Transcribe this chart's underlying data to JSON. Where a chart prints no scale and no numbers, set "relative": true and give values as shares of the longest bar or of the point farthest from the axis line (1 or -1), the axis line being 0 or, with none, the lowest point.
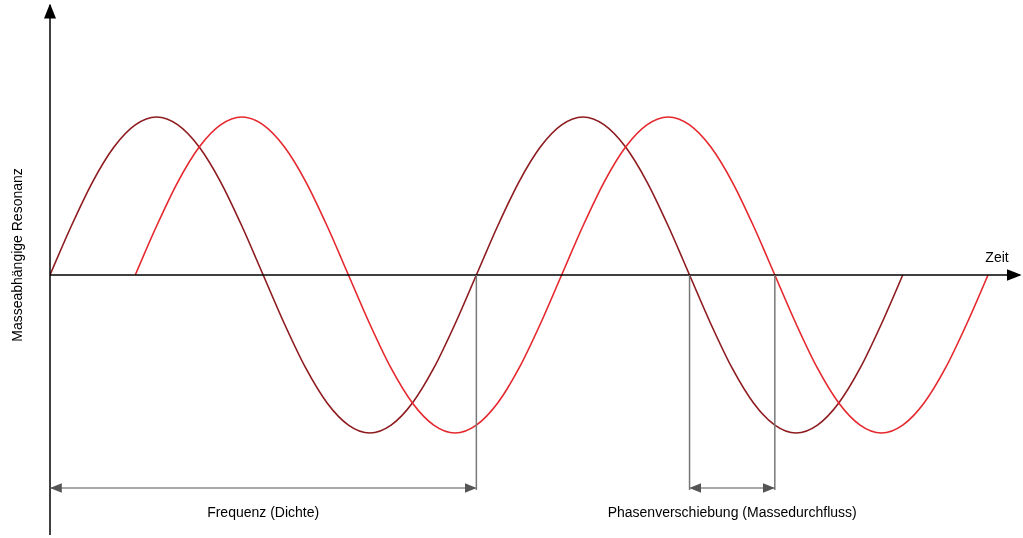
{
  "chart_data": {
    "type": "line",
    "relative": true,
    "xlabel": "Zeit",
    "ylabel": "Masseabhängige Resonanz",
    "categories": [
      null,
      null,
      null,
      null,
      null,
      null,
      null,
      null,
      null,
      null,
      null,
      null,
      null,
      null,
      null,
      null,
      null,
      null,
      null,
      null,
      null,
      null,
      null,
      null,
      null,
      null,
      null,
      null,
      null,
      null,
      null,
      null,
      null,
      null,
      null,
      null,
      null,
      null,
      null,
      null,
      null,
      null,
      null,
      null,
      null
    ],
    "series": [
      {
        "color": "#8e1b1f",
        "values": [
          0,
          0.31,
          0.59,
          0.81,
          0.95,
          1,
          0.95,
          0.81,
          0.59,
          0.31,
          0,
          -0.31,
          -0.59,
          -0.81,
          -0.95,
          -1,
          -0.95,
          -0.81,
          -0.59,
          -0.31,
          0,
          0.31,
          0.59,
          0.81,
          0.95,
          1,
          0.95,
          0.81,
          0.59,
          0.31,
          0,
          -0.31,
          -0.59,
          -0.81,
          -0.95,
          -1,
          -0.95,
          -0.81,
          -0.59,
          -0.31,
          0,
          null,
          null,
          null,
          null
        ]
      },
      {
        "color": "#e5282e",
        "values": [
          null,
          null,
          null,
          null,
          0,
          0.31,
          0.59,
          0.81,
          0.95,
          1,
          0.95,
          0.81,
          0.59,
          0.31,
          0,
          -0.31,
          -0.59,
          -0.81,
          -0.95,
          -1,
          -0.95,
          -0.81,
          -0.59,
          -0.31,
          0,
          0.31,
          0.59,
          0.81,
          0.95,
          1,
          0.95,
          0.81,
          0.59,
          0.31,
          0,
          -0.31,
          -0.59,
          -0.81,
          -0.95,
          -1,
          -0.95,
          -0.81,
          -0.59,
          -0.31,
          0
        ]
      }
    ],
    "annotations": [
      "Frequenz (Dichte)",
      "Phasenverschiebung (Massedurchfluss)"
    ]
  }
}
